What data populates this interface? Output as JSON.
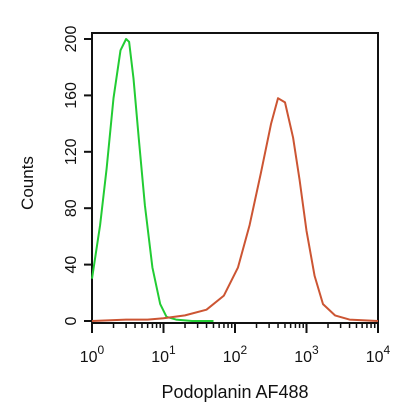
{
  "chart_data": {
    "type": "line",
    "title": "",
    "xlabel": "Podoplanin AF488",
    "ylabel": "Counts",
    "x_scale": "log",
    "xlim": [
      1,
      10000
    ],
    "ylim": [
      0,
      200
    ],
    "x_ticks": [
      {
        "value": 1,
        "base": "10",
        "exp": "0"
      },
      {
        "value": 10,
        "base": "10",
        "exp": "1"
      },
      {
        "value": 100,
        "base": "10",
        "exp": "2"
      },
      {
        "value": 1000,
        "base": "10",
        "exp": "3"
      },
      {
        "value": 10000,
        "base": "10",
        "exp": "4"
      }
    ],
    "y_ticks": [
      "0",
      "40",
      "80",
      "120",
      "160",
      "200"
    ],
    "grid": false,
    "legend": "none",
    "series": [
      {
        "color": "#22cc33",
        "x": [
          1,
          1.3,
          1.6,
          2,
          2.5,
          3,
          3.3,
          3.8,
          4.5,
          5.5,
          7,
          9,
          11,
          15,
          25,
          50
        ],
        "y": [
          30,
          68,
          108,
          158,
          192,
          200,
          198,
          172,
          130,
          82,
          38,
          12,
          3,
          1,
          0,
          0
        ]
      },
      {
        "color": "#cc5533",
        "x": [
          1,
          3,
          6,
          10,
          20,
          40,
          70,
          110,
          160,
          230,
          320,
          400,
          500,
          650,
          800,
          1000,
          1300,
          1700,
          2500,
          4000,
          10000
        ],
        "y": [
          0,
          1,
          1,
          2,
          4,
          8,
          18,
          38,
          68,
          105,
          140,
          158,
          155,
          130,
          100,
          64,
          32,
          12,
          4,
          1,
          0
        ]
      }
    ]
  }
}
